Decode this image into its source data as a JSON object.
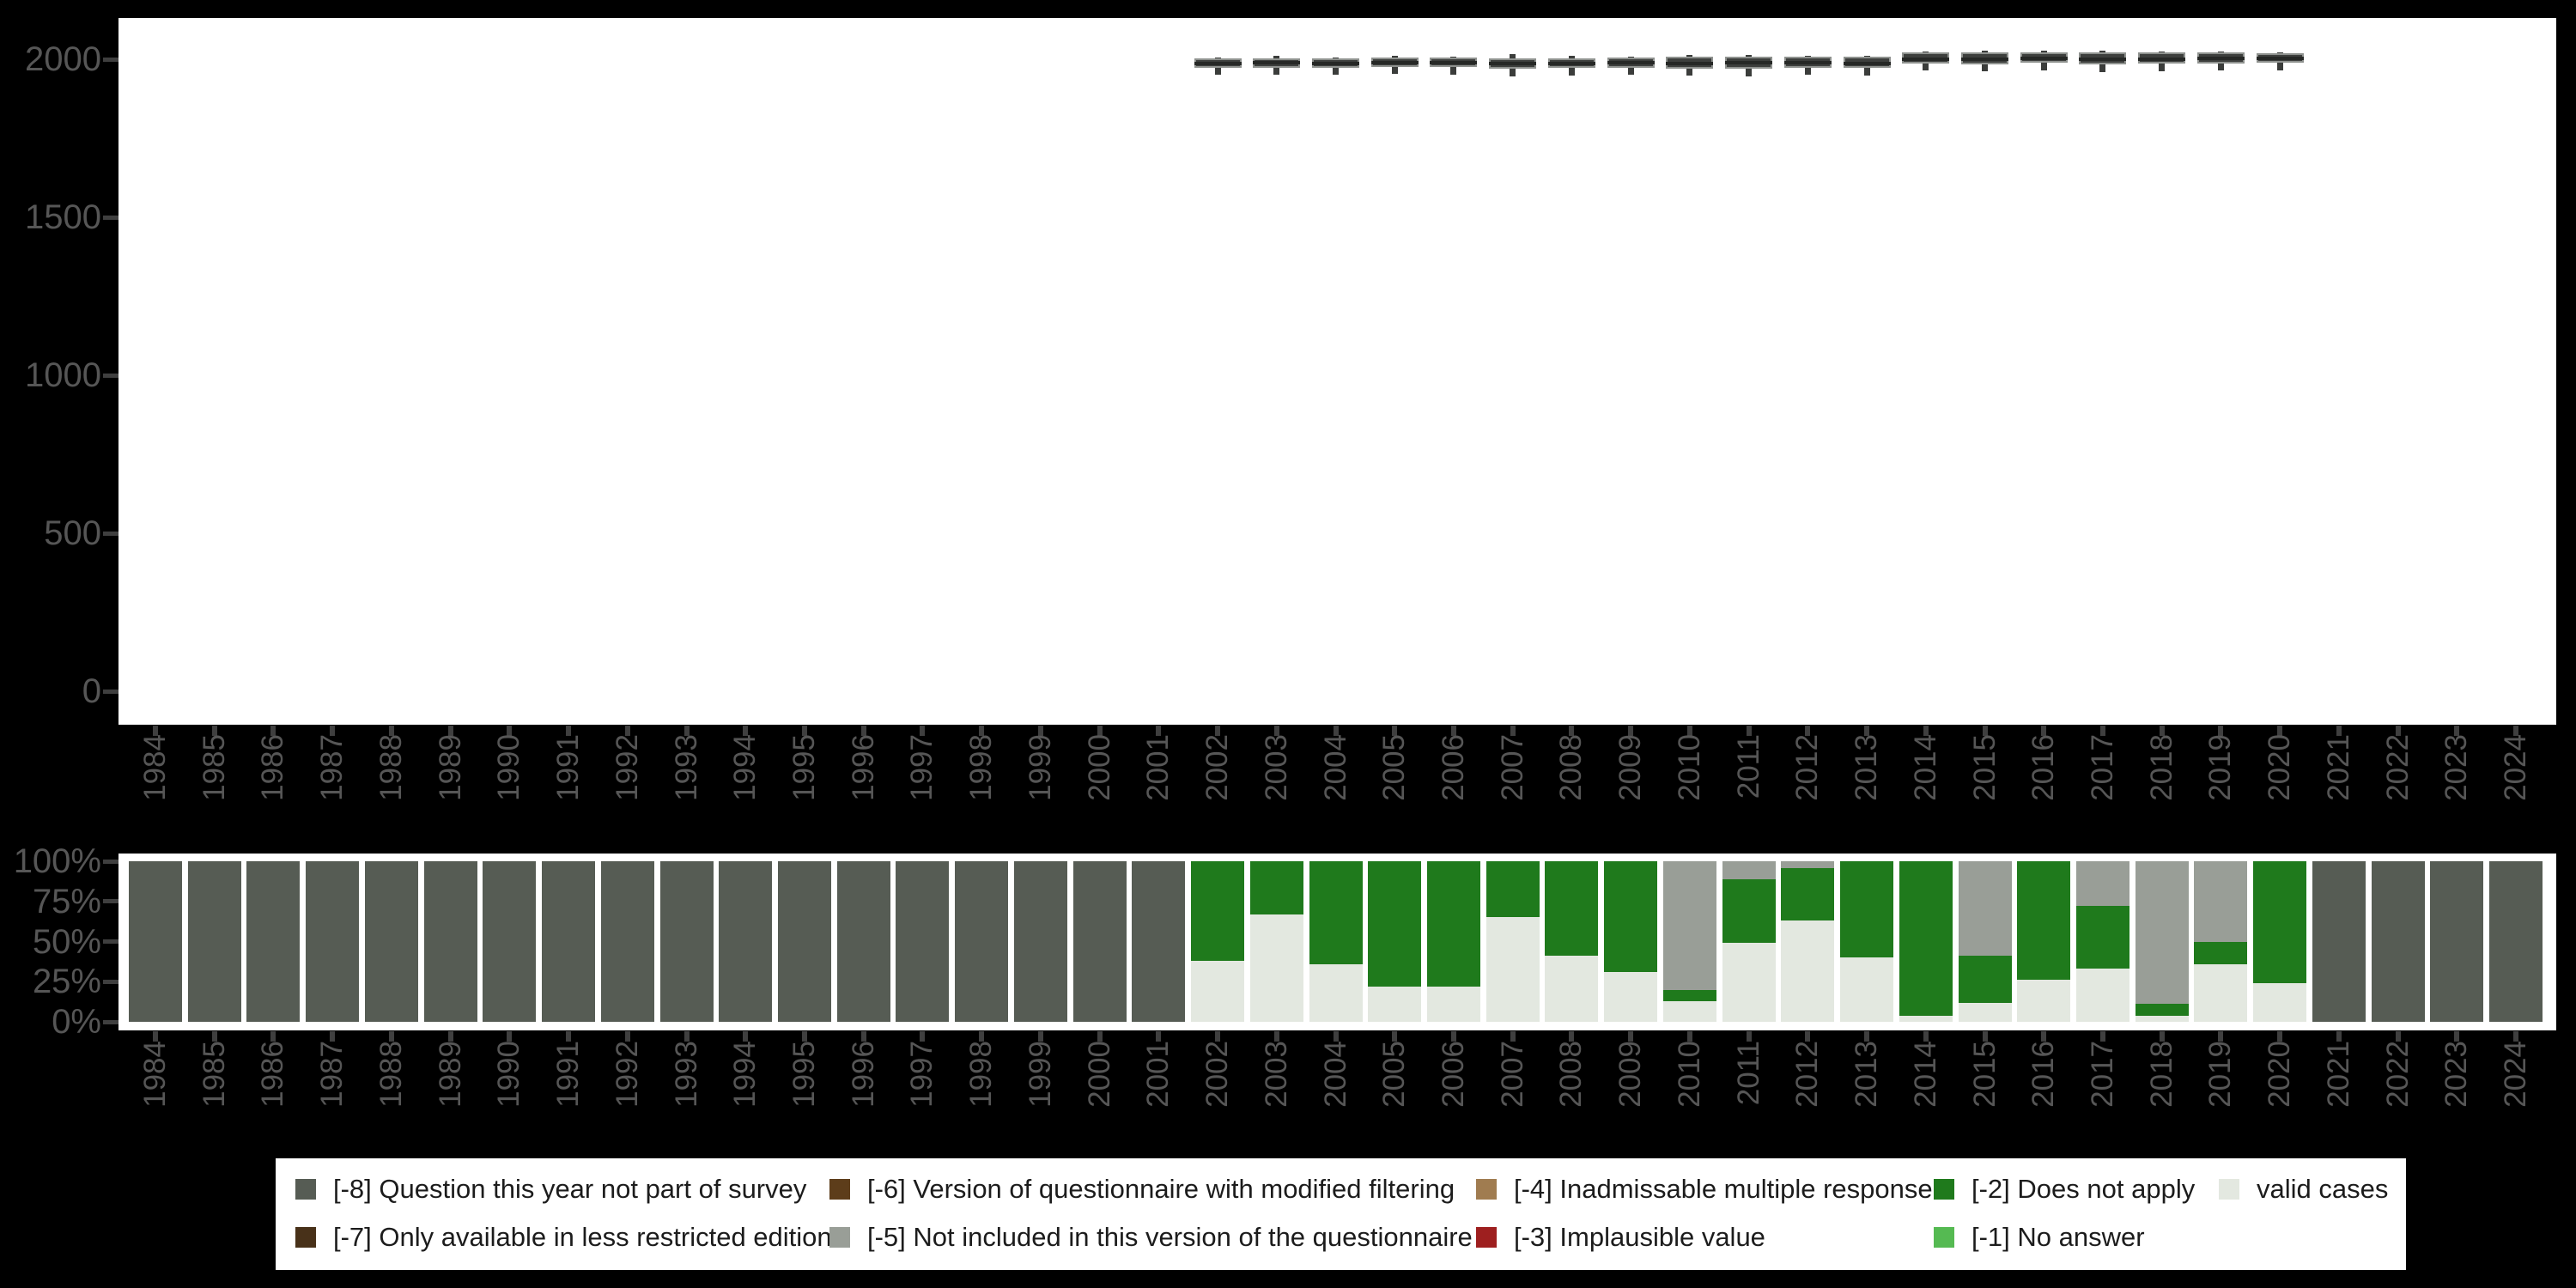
{
  "chart_data": {
    "years": [
      1984,
      1985,
      1986,
      1987,
      1988,
      1989,
      1990,
      1991,
      1992,
      1993,
      1994,
      1995,
      1996,
      1997,
      1998,
      1999,
      2000,
      2001,
      2002,
      2003,
      2004,
      2005,
      2006,
      2007,
      2008,
      2009,
      2010,
      2011,
      2012,
      2013,
      2014,
      2015,
      2016,
      2017,
      2018,
      2019,
      2020,
      2021,
      2022,
      2023,
      2024
    ],
    "palette": {
      "-8": "#565c54",
      "-7": "#483119",
      "-6": "#5d3d1a",
      "-5": "#999e97",
      "-4": "#a07c50",
      "-3": "#9e1f1f",
      "-2": "#1f7a1c",
      "-1": "#55ba52",
      "valid": "#e3e8e0"
    },
    "colors": {
      "background": "#000000",
      "panel": "#ffffff",
      "axis_text": "#565656",
      "tick_mark": "#3f3f3f",
      "box_fill": "#3d3f3d",
      "box_border": "#8f928f"
    },
    "charts": [
      {
        "type": "boxplot",
        "title": "",
        "xlabel": "",
        "ylabel": "",
        "grid": false,
        "y_ticks": [
          0,
          500,
          1000,
          1500,
          2000
        ],
        "ylim": [
          0,
          2240
        ],
        "boxes": [
          {
            "year": 2002,
            "whislo": 1950,
            "q1": 1972,
            "med": 1986,
            "q3": 2002,
            "whishi": 2005
          },
          {
            "year": 2003,
            "whislo": 1952,
            "q1": 1974,
            "med": 1988,
            "q3": 2004,
            "whishi": 2010
          },
          {
            "year": 2004,
            "whislo": 1950,
            "q1": 1972,
            "med": 1986,
            "q3": 2003,
            "whishi": 2006
          },
          {
            "year": 2005,
            "whislo": 1953,
            "q1": 1975,
            "med": 1989,
            "q3": 2005,
            "whishi": 2012
          },
          {
            "year": 2006,
            "whislo": 1952,
            "q1": 1975,
            "med": 1989,
            "q3": 2006,
            "whishi": 2009
          },
          {
            "year": 2007,
            "whislo": 1945,
            "q1": 1970,
            "med": 1986,
            "q3": 2004,
            "whishi": 2016
          },
          {
            "year": 2008,
            "whislo": 1948,
            "q1": 1972,
            "med": 1987,
            "q3": 2004,
            "whishi": 2010
          },
          {
            "year": 2009,
            "whislo": 1950,
            "q1": 1973,
            "med": 1988,
            "q3": 2005,
            "whishi": 2008
          },
          {
            "year": 2010,
            "whislo": 1948,
            "q1": 1970,
            "med": 1987,
            "q3": 2007,
            "whishi": 2014
          },
          {
            "year": 2011,
            "whislo": 1946,
            "q1": 1970,
            "med": 1988,
            "q3": 2008,
            "whishi": 2013
          },
          {
            "year": 2012,
            "whislo": 1950,
            "q1": 1972,
            "med": 1988,
            "q3": 2008,
            "whishi": 2011
          },
          {
            "year": 2013,
            "whislo": 1949,
            "q1": 1972,
            "med": 1987,
            "q3": 2007,
            "whishi": 2012
          },
          {
            "year": 2014,
            "whislo": 1965,
            "q1": 1986,
            "med": 2000,
            "q3": 2021,
            "whishi": 2024
          },
          {
            "year": 2015,
            "whislo": 1962,
            "q1": 1985,
            "med": 2000,
            "q3": 2021,
            "whishi": 2026
          },
          {
            "year": 2016,
            "whislo": 1966,
            "q1": 1988,
            "med": 2002,
            "q3": 2022,
            "whishi": 2026
          },
          {
            "year": 2017,
            "whislo": 1960,
            "q1": 1984,
            "med": 2000,
            "q3": 2021,
            "whishi": 2027
          },
          {
            "year": 2018,
            "whislo": 1963,
            "q1": 1986,
            "med": 2001,
            "q3": 2021,
            "whishi": 2024
          },
          {
            "year": 2019,
            "whislo": 1965,
            "q1": 1987,
            "med": 2002,
            "q3": 2021,
            "whishi": 2024
          },
          {
            "year": 2020,
            "whislo": 1966,
            "q1": 1988,
            "med": 2002,
            "q3": 2020,
            "whishi": 2023
          }
        ]
      },
      {
        "type": "bar",
        "stacked_percent": true,
        "title": "",
        "xlabel": "",
        "ylabel": "",
        "grid": false,
        "y_ticks": [
          "0%",
          "25%",
          "50%",
          "75%",
          "100%"
        ],
        "ylim": [
          0,
          100
        ],
        "bars": [
          {
            "year": 1984,
            "segments": [
              {
                "category": "-8",
                "percent": 100
              }
            ]
          },
          {
            "year": 1985,
            "segments": [
              {
                "category": "-8",
                "percent": 100
              }
            ]
          },
          {
            "year": 1986,
            "segments": [
              {
                "category": "-8",
                "percent": 100
              }
            ]
          },
          {
            "year": 1987,
            "segments": [
              {
                "category": "-8",
                "percent": 100
              }
            ]
          },
          {
            "year": 1988,
            "segments": [
              {
                "category": "-8",
                "percent": 100
              }
            ]
          },
          {
            "year": 1989,
            "segments": [
              {
                "category": "-8",
                "percent": 100
              }
            ]
          },
          {
            "year": 1990,
            "segments": [
              {
                "category": "-8",
                "percent": 100
              }
            ]
          },
          {
            "year": 1991,
            "segments": [
              {
                "category": "-8",
                "percent": 100
              }
            ]
          },
          {
            "year": 1992,
            "segments": [
              {
                "category": "-8",
                "percent": 100
              }
            ]
          },
          {
            "year": 1993,
            "segments": [
              {
                "category": "-8",
                "percent": 100
              }
            ]
          },
          {
            "year": 1994,
            "segments": [
              {
                "category": "-8",
                "percent": 100
              }
            ]
          },
          {
            "year": 1995,
            "segments": [
              {
                "category": "-8",
                "percent": 100
              }
            ]
          },
          {
            "year": 1996,
            "segments": [
              {
                "category": "-8",
                "percent": 100
              }
            ]
          },
          {
            "year": 1997,
            "segments": [
              {
                "category": "-8",
                "percent": 100
              }
            ]
          },
          {
            "year": 1998,
            "segments": [
              {
                "category": "-8",
                "percent": 100
              }
            ]
          },
          {
            "year": 1999,
            "segments": [
              {
                "category": "-8",
                "percent": 100
              }
            ]
          },
          {
            "year": 2000,
            "segments": [
              {
                "category": "-8",
                "percent": 100
              }
            ]
          },
          {
            "year": 2001,
            "segments": [
              {
                "category": "-8",
                "percent": 100
              }
            ]
          },
          {
            "year": 2002,
            "segments": [
              {
                "category": "valid",
                "percent": 38
              },
              {
                "category": "-2",
                "percent": 62
              }
            ]
          },
          {
            "year": 2003,
            "segments": [
              {
                "category": "valid",
                "percent": 67
              },
              {
                "category": "-2",
                "percent": 33
              }
            ]
          },
          {
            "year": 2004,
            "segments": [
              {
                "category": "valid",
                "percent": 36
              },
              {
                "category": "-2",
                "percent": 64
              }
            ]
          },
          {
            "year": 2005,
            "segments": [
              {
                "category": "valid",
                "percent": 22
              },
              {
                "category": "-2",
                "percent": 78
              }
            ]
          },
          {
            "year": 2006,
            "segments": [
              {
                "category": "valid",
                "percent": 22
              },
              {
                "category": "-2",
                "percent": 78
              }
            ]
          },
          {
            "year": 2007,
            "segments": [
              {
                "category": "valid",
                "percent": 65
              },
              {
                "category": "-2",
                "percent": 35
              }
            ]
          },
          {
            "year": 2008,
            "segments": [
              {
                "category": "valid",
                "percent": 41
              },
              {
                "category": "-2",
                "percent": 59
              }
            ]
          },
          {
            "year": 2009,
            "segments": [
              {
                "category": "valid",
                "percent": 31
              },
              {
                "category": "-2",
                "percent": 69
              }
            ]
          },
          {
            "year": 2010,
            "segments": [
              {
                "category": "valid",
                "percent": 13
              },
              {
                "category": "-2",
                "percent": 7
              },
              {
                "category": "-5",
                "percent": 80
              }
            ]
          },
          {
            "year": 2011,
            "segments": [
              {
                "category": "valid",
                "percent": 49
              },
              {
                "category": "-2",
                "percent": 40
              },
              {
                "category": "-5",
                "percent": 11
              }
            ]
          },
          {
            "year": 2012,
            "segments": [
              {
                "category": "valid",
                "percent": 63
              },
              {
                "category": "-2",
                "percent": 33
              },
              {
                "category": "-5",
                "percent": 4
              }
            ]
          },
          {
            "year": 2013,
            "segments": [
              {
                "category": "valid",
                "percent": 40
              },
              {
                "category": "-2",
                "percent": 60
              }
            ]
          },
          {
            "year": 2014,
            "segments": [
              {
                "category": "valid",
                "percent": 4
              },
              {
                "category": "-2",
                "percent": 96
              }
            ]
          },
          {
            "year": 2015,
            "segments": [
              {
                "category": "valid",
                "percent": 12
              },
              {
                "category": "-2",
                "percent": 29
              },
              {
                "category": "-5",
                "percent": 59
              }
            ]
          },
          {
            "year": 2016,
            "segments": [
              {
                "category": "valid",
                "percent": 26
              },
              {
                "category": "-2",
                "percent": 74
              }
            ]
          },
          {
            "year": 2017,
            "segments": [
              {
                "category": "valid",
                "percent": 33
              },
              {
                "category": "-2",
                "percent": 39
              },
              {
                "category": "-5",
                "percent": 28
              }
            ]
          },
          {
            "year": 2018,
            "segments": [
              {
                "category": "valid",
                "percent": 4
              },
              {
                "category": "-2",
                "percent": 7
              },
              {
                "category": "-5",
                "percent": 89
              }
            ]
          },
          {
            "year": 2019,
            "segments": [
              {
                "category": "valid",
                "percent": 36
              },
              {
                "category": "-2",
                "percent": 14
              },
              {
                "category": "-5",
                "percent": 50
              }
            ]
          },
          {
            "year": 2020,
            "segments": [
              {
                "category": "valid",
                "percent": 24
              },
              {
                "category": "-2",
                "percent": 76
              }
            ]
          },
          {
            "year": 2021,
            "segments": [
              {
                "category": "-8",
                "percent": 100
              }
            ]
          },
          {
            "year": 2022,
            "segments": [
              {
                "category": "-8",
                "percent": 100
              }
            ]
          },
          {
            "year": 2023,
            "segments": [
              {
                "category": "-8",
                "percent": 100
              }
            ]
          },
          {
            "year": 2024,
            "segments": [
              {
                "category": "-8",
                "percent": 100
              }
            ]
          }
        ]
      }
    ]
  },
  "legend": {
    "rows": [
      [
        {
          "key": "-8",
          "label": "[-8] Question this year not part of survey"
        },
        {
          "key": "-6",
          "label": "[-6] Version of questionnaire with modified filtering"
        },
        {
          "key": "-4",
          "label": "[-4] Inadmissable multiple response"
        },
        {
          "key": "-2",
          "label": "[-2] Does not apply"
        },
        {
          "key": "valid",
          "label": "valid cases"
        }
      ],
      [
        {
          "key": "-7",
          "label": "[-7] Only available in less restricted edition"
        },
        {
          "key": "-5",
          "label": "[-5] Not included in this version of the questionnaire"
        },
        {
          "key": "-3",
          "label": "[-3] Implausible value"
        },
        {
          "key": "-1",
          "label": "[-1] No answer"
        }
      ]
    ]
  }
}
